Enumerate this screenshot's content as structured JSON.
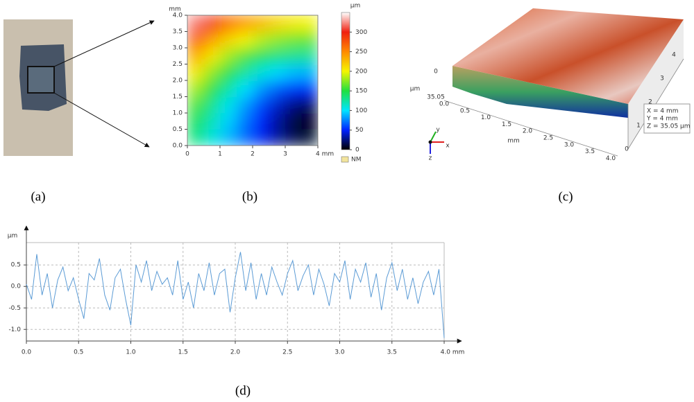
{
  "figure": {
    "labels": [
      "(a)",
      "(b)",
      "(c)",
      "(d)"
    ]
  },
  "chart_data": [
    {
      "type": "heatmap",
      "x": [
        0.25,
        0.75,
        1.25,
        1.75,
        2.25,
        2.75,
        3.25,
        3.75
      ],
      "y": [
        3.75,
        3.25,
        2.75,
        2.25,
        1.75,
        1.25,
        0.75,
        0.25
      ],
      "z": [
        [
          320,
          290,
          265,
          245,
          230,
          215,
          205,
          200
        ],
        [
          270,
          240,
          215,
          200,
          185,
          175,
          168,
          165
        ],
        [
          235,
          205,
          180,
          160,
          145,
          135,
          130,
          128
        ],
        [
          205,
          175,
          150,
          128,
          110,
          98,
          90,
          88
        ],
        [
          180,
          150,
          125,
          100,
          80,
          65,
          55,
          52
        ],
        [
          160,
          130,
          105,
          82,
          60,
          40,
          25,
          18
        ],
        [
          145,
          118,
          95,
          72,
          50,
          30,
          12,
          5
        ],
        [
          135,
          110,
          88,
          68,
          48,
          30,
          15,
          10
        ]
      ],
      "xlim": [
        0,
        4
      ],
      "ylim": [
        0,
        4
      ],
      "xticks": [
        0,
        1,
        2,
        3,
        {
          "value": 4,
          "label": "4 mm"
        }
      ],
      "yticks": [
        {
          "value": 0,
          "label": "0.0"
        },
        0.5,
        {
          "value": 1,
          "label": "1.0"
        },
        1.5,
        {
          "value": 2,
          "label": "2.0"
        },
        2.5,
        {
          "value": 3,
          "label": "3.0"
        },
        3.5,
        {
          "value": 4,
          "label": "4.0"
        }
      ],
      "y_label": "mm",
      "colorbar_label": "µm",
      "zlim": [
        0,
        350
      ],
      "zticks": [
        0,
        50,
        100,
        150,
        200,
        250,
        300
      ],
      "colormap": [
        {
          "value": 0,
          "color": "#000000"
        },
        {
          "value": 50,
          "color": "#0022ff"
        },
        {
          "value": 100,
          "color": "#00e5ff"
        },
        {
          "value": 150,
          "color": "#20e040"
        },
        {
          "value": 200,
          "color": "#f5f500"
        },
        {
          "value": 250,
          "color": "#ff8a00"
        },
        {
          "value": 300,
          "color": "#f02010"
        },
        {
          "value": 350,
          "color": "#ffffff"
        }
      ],
      "legend": {
        "label": "NM",
        "color": "#f2e49c"
      }
    },
    {
      "type": "line",
      "x": [
        0,
        0.05,
        0.1,
        0.15,
        0.2,
        0.25,
        0.3,
        0.35,
        0.4,
        0.45,
        0.5,
        0.55,
        0.6,
        0.65,
        0.7,
        0.75,
        0.8,
        0.85,
        0.9,
        0.95,
        1,
        1.05,
        1.1,
        1.15,
        1.2,
        1.25,
        1.3,
        1.35,
        1.4,
        1.45,
        1.5,
        1.55,
        1.6,
        1.65,
        1.7,
        1.75,
        1.8,
        1.85,
        1.9,
        1.95,
        2,
        2.05,
        2.1,
        2.15,
        2.2,
        2.25,
        2.3,
        2.35,
        2.4,
        2.45,
        2.5,
        2.55,
        2.6,
        2.65,
        2.7,
        2.75,
        2.8,
        2.85,
        2.9,
        2.95,
        3,
        3.05,
        3.1,
        3.15,
        3.2,
        3.25,
        3.3,
        3.35,
        3.4,
        3.45,
        3.5,
        3.55,
        3.6,
        3.65,
        3.7,
        3.75,
        3.8,
        3.85,
        3.9,
        3.95,
        4
      ],
      "series": [
        {
          "color": "#5b9bd5",
          "values": [
            0.05,
            -0.3,
            0.75,
            -0.2,
            0.3,
            -0.5,
            0.15,
            0.45,
            -0.1,
            0.2,
            -0.3,
            -0.75,
            0.3,
            0.15,
            0.65,
            -0.2,
            -0.55,
            0.2,
            0.4,
            -0.3,
            -0.9,
            0.5,
            0.1,
            0.6,
            -0.1,
            0.35,
            0.05,
            0.2,
            -0.2,
            0.6,
            -0.3,
            0.1,
            -0.5,
            0.3,
            -0.1,
            0.55,
            -0.2,
            0.3,
            0.4,
            -0.6,
            0.2,
            0.8,
            -0.1,
            0.55,
            -0.3,
            0.3,
            -0.2,
            0.45,
            0.1,
            -0.2,
            0.3,
            0.6,
            -0.1,
            0.25,
            0.5,
            -0.2,
            0.4,
            0.05,
            -0.45,
            0.3,
            0.1,
            0.6,
            -0.3,
            0.4,
            0.1,
            0.55,
            -0.25,
            0.3,
            -0.55,
            0.2,
            0.55,
            -0.1,
            0.4,
            -0.3,
            0.2,
            -0.4,
            0.1,
            0.35,
            -0.2,
            0.4,
            -1.2
          ]
        }
      ],
      "xlim": [
        0,
        4
      ],
      "ylim": [
        -1.27,
        1.02
      ],
      "xticks": [
        {
          "value": 0,
          "label": "0.0"
        },
        0.5,
        {
          "value": 1,
          "label": "1.0"
        },
        1.5,
        {
          "value": 2,
          "label": "2.0"
        },
        2.5,
        {
          "value": 3,
          "label": "3.0"
        },
        3.5,
        {
          "value": 4,
          "label": "4.0 mm"
        }
      ],
      "yticks": [
        {
          "value": -1,
          "label": "-1.0"
        },
        -0.5,
        {
          "value": 0,
          "label": "0.0"
        },
        0.5
      ],
      "y_label": "µm",
      "grid": true
    }
  ],
  "surface_3d": {
    "z_ticks": [
      "0",
      "35.05"
    ],
    "z_unit": "µm",
    "x_ticks": [
      "0.0",
      "0.5",
      "1.0",
      "1.5",
      "2.0",
      "2.5",
      "3.0",
      "3.5",
      "4.0"
    ],
    "x_unit": "mm",
    "y_ticks": [
      "0",
      "1",
      "2",
      "3",
      "4"
    ],
    "info": [
      "X = 4 mm",
      "Y = 4 mm",
      "Z = 35.05 µm"
    ],
    "axis_names": [
      "x",
      "y",
      "z"
    ]
  }
}
